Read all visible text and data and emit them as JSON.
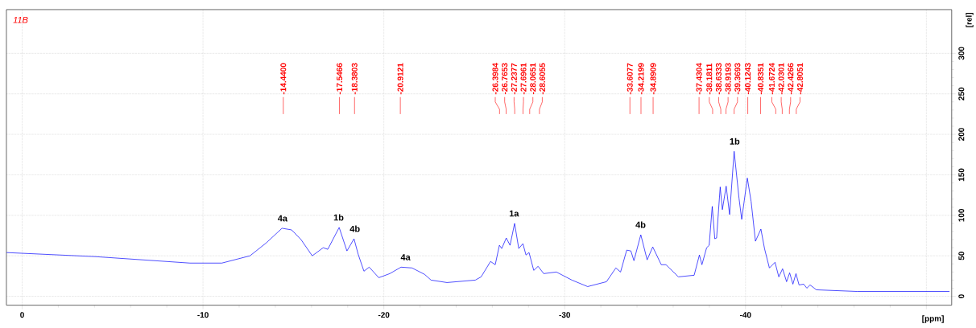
{
  "chart_data": {
    "type": "line",
    "title": "11B",
    "xlabel": "[ppm]",
    "ylabel": "[rel]",
    "color": "#0000ff",
    "grid": true,
    "xlim": [
      0.87,
      -51.4
    ],
    "ylim": [
      -11,
      354
    ],
    "xticks": [
      0,
      -10,
      -20,
      -30,
      -40,
      {
        "value": -50,
        "label": null
      }
    ],
    "yticks": [
      0,
      50,
      100,
      150,
      200,
      250,
      300
    ],
    "x": [
      0.86,
      -4.03,
      -9.28,
      -11.04,
      -12.6,
      -13.5,
      -14.37,
      -14.9,
      -15.42,
      -16.04,
      -16.65,
      -16.9,
      -17.53,
      -17.96,
      -18.35,
      -18.58,
      -18.9,
      -19.19,
      -19.72,
      -20.33,
      -20.95,
      -21.56,
      -22.26,
      -22.61,
      -23.49,
      -25.06,
      -25.38,
      -25.9,
      -26.16,
      -26.39,
      -26.52,
      -26.77,
      -26.98,
      -27.23,
      -27.46,
      -27.69,
      -27.86,
      -28.03,
      -28.29,
      -28.53,
      -28.84,
      -29.54,
      -30.4,
      -31.27,
      -32.31,
      -32.83,
      -33.09,
      -33.43,
      -33.66,
      -33.83,
      -34.21,
      -34.56,
      -34.87,
      -35.34,
      -35.6,
      -36.29,
      -37.16,
      -37.45,
      -37.59,
      -37.85,
      -37.99,
      -38.16,
      -38.3,
      -38.4,
      -38.6,
      -38.72,
      -38.93,
      -39.12,
      -39.37,
      -39.64,
      -39.79,
      -40.1,
      -40.31,
      -40.55,
      -40.85,
      -41.05,
      -41.32,
      -41.63,
      -41.84,
      -42.05,
      -42.27,
      -42.44,
      -42.62,
      -42.79,
      -42.96,
      -43.22,
      -43.39,
      -43.57,
      -43.92,
      -46.17,
      -51.28
    ],
    "values": [
      54,
      49,
      41,
      41,
      50,
      66,
      84,
      82,
      70,
      50,
      60,
      58,
      85,
      56,
      71,
      52,
      31,
      36,
      23,
      28,
      36,
      35,
      27,
      20,
      17,
      20,
      24,
      43,
      39,
      63,
      59,
      72,
      63,
      90,
      59,
      65,
      51,
      54,
      32,
      37,
      28,
      30,
      20,
      12,
      18,
      35,
      30,
      57,
      56,
      44,
      76,
      45,
      61,
      39,
      39,
      24,
      26,
      51,
      39,
      60,
      63,
      111,
      71,
      72,
      135,
      107,
      136,
      101,
      179,
      121,
      95,
      146,
      117,
      68,
      83,
      59,
      35,
      42,
      24,
      34,
      18,
      29,
      15,
      28,
      14,
      15,
      10,
      14,
      8,
      6,
      6
    ],
    "annotations": [
      {
        "text": "4a",
        "x": -14.4,
        "y": 84
      },
      {
        "text": "1b",
        "x": -17.5,
        "y": 85
      },
      {
        "text": "4b",
        "x": -18.4,
        "y": 71
      },
      {
        "text": "4a",
        "x": -21.2,
        "y": 36
      },
      {
        "text": "1a",
        "x": -27.2,
        "y": 90
      },
      {
        "text": "4b",
        "x": -34.2,
        "y": 76
      },
      {
        "text": "1b",
        "x": -39.4,
        "y": 179
      },
      {
        "text": "-14.4400",
        "x": -14.44
      },
      {
        "text": "-17.5466",
        "x": -17.5466
      },
      {
        "text": "-18.3803",
        "x": -18.3803
      },
      {
        "text": "-20.9121",
        "x": -20.9121
      },
      {
        "text": "-26.3984",
        "x": -26.3984
      },
      {
        "text": "-26.7653",
        "x": -26.7653
      },
      {
        "text": "-27.2377",
        "x": -27.2377
      },
      {
        "text": "-27.6961",
        "x": -27.6961
      },
      {
        "text": "-28.0651",
        "x": -28.0651
      },
      {
        "text": "-28.6055",
        "x": -28.6055
      },
      {
        "text": "-33.6077",
        "x": -33.6077
      },
      {
        "text": "-34.2199",
        "x": -34.2199
      },
      {
        "text": "-34.8909",
        "x": -34.8909
      },
      {
        "text": "-37.4304",
        "x": -37.4304
      },
      {
        "text": "-38.1811",
        "x": -38.1811
      },
      {
        "text": "-38.6333",
        "x": -38.6333
      },
      {
        "text": "-38.9193",
        "x": -38.9193
      },
      {
        "text": "-39.3693",
        "x": -39.3693
      },
      {
        "text": "-40.1243",
        "x": -40.1243
      },
      {
        "text": "-40.8351",
        "x": -40.8351
      },
      {
        "text": "-41.6724",
        "x": -41.6724
      },
      {
        "text": "-42.0301",
        "x": -42.0301
      },
      {
        "text": "-42.4266",
        "x": -42.4266
      },
      {
        "text": "-42.8051",
        "x": -42.8051
      }
    ]
  }
}
